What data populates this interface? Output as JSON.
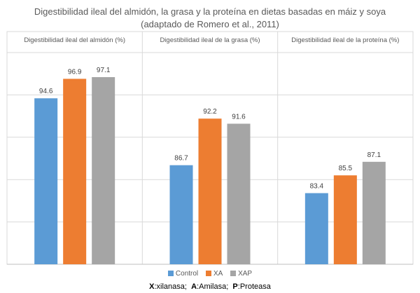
{
  "title_line1": "Digestibilidad ileal del almidón, la grasa y la proteína en dietas basadas en máiz y soya",
  "title_line2": "(adaptado de Romero et al., 2011)",
  "footnote": {
    "x_key": "X",
    "x_text": ":xilanasa;",
    "a_key": "A",
    "a_text": ":Amilasa;",
    "p_key": "P",
    "p_text": ":Proteasa"
  },
  "legend": [
    {
      "label": "Control",
      "color": "#5b9bd5"
    },
    {
      "label": "XA",
      "color": "#ed7d31"
    },
    {
      "label": "XAP",
      "color": "#a5a5a5"
    }
  ],
  "chart_data": {
    "type": "bar",
    "panels": [
      {
        "title": "Digestibilidad ileal del almidón (%)",
        "values": [
          94.6,
          96.9,
          97.1
        ]
      },
      {
        "title": "Digestibilidad ileal de la grasa (%)",
        "values": [
          86.7,
          92.2,
          91.6
        ]
      },
      {
        "title": "Digestibilidad ileal de la proteína (%)",
        "values": [
          83.4,
          85.5,
          87.1
        ]
      }
    ],
    "series": [
      {
        "name": "Control",
        "color": "#5b9bd5"
      },
      {
        "name": "XA",
        "color": "#ed7d31"
      },
      {
        "name": "XAP",
        "color": "#a5a5a5"
      }
    ],
    "ylim": [
      75,
      100
    ],
    "grid": true,
    "legend_position": "bottom"
  }
}
